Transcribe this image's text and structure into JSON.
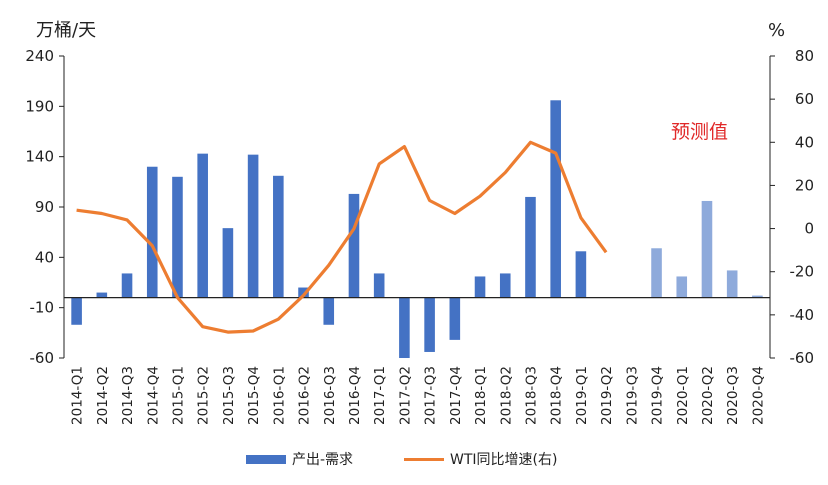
{
  "chart_data": {
    "type": "bar+line",
    "left_unit": "万桶/天",
    "right_unit": "%",
    "annotation": "预测值",
    "categories": [
      "2014-Q1",
      "2014-Q2",
      "2014-Q3",
      "2014-Q4",
      "2015-Q1",
      "2015-Q2",
      "2015-Q3",
      "2015-Q4",
      "2016-Q1",
      "2016-Q2",
      "2016-Q3",
      "2016-Q4",
      "2017-Q1",
      "2017-Q2",
      "2017-Q3",
      "2017-Q4",
      "2018-Q1",
      "2018-Q2",
      "2018-Q3",
      "2018-Q4",
      "2019-Q1",
      "2019-Q2",
      "2019-Q3",
      "2019-Q4",
      "2020-Q1",
      "2020-Q2",
      "2020-Q3",
      "2020-Q4"
    ],
    "left_axis": {
      "min": -60,
      "max": 240,
      "ticks": [
        240,
        190,
        140,
        90,
        40,
        -10,
        -60
      ]
    },
    "right_axis": {
      "min": -60,
      "max": 80,
      "ticks": [
        80,
        60,
        40,
        20,
        0,
        -20,
        -40,
        -60
      ]
    },
    "series": [
      {
        "name": "产出-需求",
        "kind": "bar",
        "axis": "left",
        "color": "#4472c4",
        "forecast_color": "#8eaadb",
        "forecast_start_index": 23,
        "values": [
          -27,
          5,
          24,
          130,
          120,
          143,
          69,
          142,
          121,
          10,
          -27,
          103,
          24,
          -60,
          -54,
          -42,
          21,
          24,
          100,
          196,
          46,
          0,
          0,
          49,
          21,
          96,
          27,
          2
        ]
      },
      {
        "name": "WTI同比增速(右)",
        "kind": "line",
        "axis": "right",
        "color": "#ed7d31",
        "values": [
          8.5,
          7,
          4,
          -8,
          -32,
          -45.5,
          -48,
          -47.5,
          -42,
          -31,
          -17,
          0,
          30,
          38,
          13,
          7,
          15,
          26,
          40,
          35,
          5,
          -11,
          null,
          null,
          null,
          null,
          null,
          null
        ]
      }
    ]
  }
}
